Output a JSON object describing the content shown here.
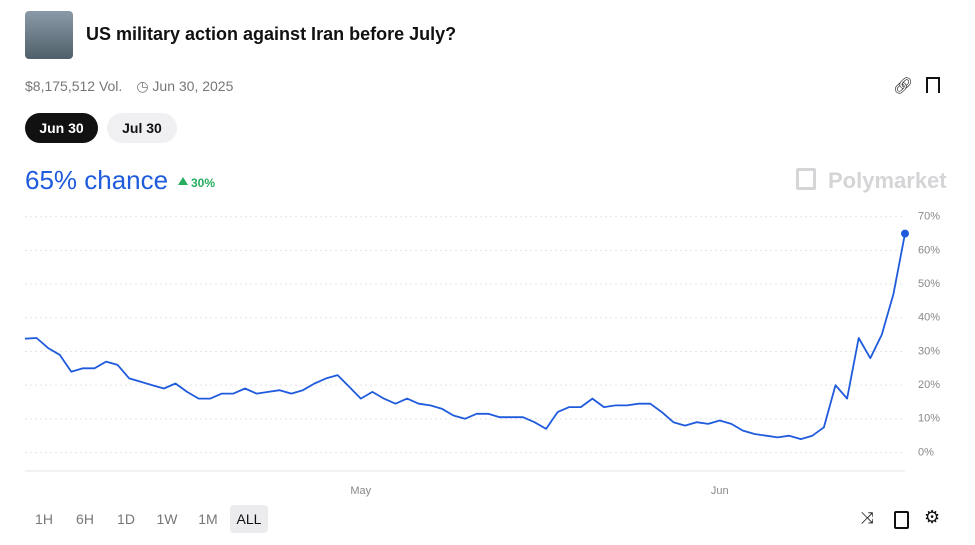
{
  "header": {
    "title": "US military action against Iran before July?",
    "volume": "$8,175,512 Vol.",
    "date": "Jun 30, 2025"
  },
  "tabs": [
    "Jun 30",
    "Jul 30"
  ],
  "chance": "65% chance",
  "change": "30%",
  "brand": "Polymarket",
  "ranges": [
    "1H",
    "6H",
    "1D",
    "1W",
    "1M",
    "ALL"
  ],
  "chart_data": {
    "type": "line",
    "color": "#1f5bdc",
    "grid": true,
    "categories": [
      null,
      null,
      null,
      null,
      null,
      null,
      null,
      null,
      null,
      null,
      null,
      null,
      null,
      null,
      null,
      null,
      null,
      null,
      null,
      null,
      null,
      null,
      null,
      null,
      null,
      null,
      null,
      null,
      null,
      "May",
      null,
      null,
      null,
      null,
      null,
      null,
      null,
      null,
      null,
      null,
      null,
      null,
      null,
      null,
      null,
      null,
      null,
      null,
      null,
      null,
      null,
      null,
      null,
      null,
      null,
      null,
      null,
      null,
      null,
      null,
      "Jun",
      null,
      null,
      null,
      null,
      null,
      null,
      null,
      null,
      null,
      null,
      null,
      null,
      null,
      null,
      null,
      null
    ],
    "values": [
      33.8,
      34,
      31,
      29,
      24,
      25,
      25,
      27,
      26,
      22,
      21,
      20,
      19,
      20.5,
      18,
      16,
      16,
      17.5,
      17.5,
      19,
      17.5,
      18,
      18.5,
      17.5,
      18.5,
      20.5,
      22,
      23,
      19.5,
      16,
      18,
      16,
      14.5,
      16,
      14.5,
      14,
      13,
      11,
      10,
      11.5,
      11.5,
      10.5,
      10.5,
      10.5,
      9,
      7,
      12,
      13.5,
      13.5,
      16,
      13.5,
      14,
      14,
      14.5,
      14.5,
      12,
      9,
      8,
      9,
      8.5,
      9.5,
      8.5,
      6.5,
      5.5,
      5,
      4.5,
      5,
      4,
      5,
      7.5,
      20,
      16,
      34,
      28,
      35,
      47,
      65
    ],
    "ylim": [
      -4,
      72
    ],
    "yticks": [
      {
        "value": 0,
        "label": "0%"
      },
      {
        "value": 10,
        "label": "10%"
      },
      {
        "value": 20,
        "label": "20%"
      },
      {
        "value": 30,
        "label": "30%"
      },
      {
        "value": 40,
        "label": "40%"
      },
      {
        "value": 50,
        "label": "50%"
      },
      {
        "value": 60,
        "label": "60%"
      },
      {
        "value": 70,
        "label": "70%"
      }
    ]
  }
}
